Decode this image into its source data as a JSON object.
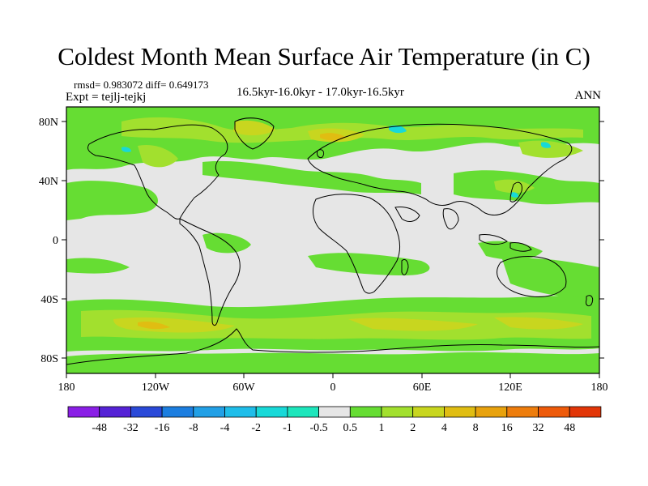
{
  "title": "Coldest Month Mean Surface Air Temperature (in C)",
  "stats": "rmsd= 0.983072  diff= 0.649173",
  "experiment": "Expt = tejlj-tejkj",
  "period": "16.5kyr-16.0kyr - 17.0kyr-16.5kyr",
  "season": "ANN",
  "lat_ticks": [
    "80N",
    "40N",
    "0",
    "40S",
    "80S"
  ],
  "lon_ticks": [
    "180",
    "120W",
    "60W",
    "0",
    "60E",
    "120E",
    "180"
  ],
  "legend": {
    "labels": [
      "-48",
      "-32",
      "-16",
      "-8",
      "-4",
      "-2",
      "-1",
      "-0.5",
      "0.5",
      "1",
      "2",
      "4",
      "8",
      "16",
      "32",
      "48"
    ],
    "colors": [
      "#8a1fe6",
      "#5522d6",
      "#2a49d8",
      "#1c7ee0",
      "#22a0e6",
      "#1fbde9",
      "#18d9d8",
      "#1de6bc",
      "#e6e6e6",
      "#66dd33",
      "#a2e02e",
      "#c8d61f",
      "#e0bd12",
      "#e8a20d",
      "#ee7d0c",
      "#ee5a0a",
      "#e23608"
    ]
  },
  "colors": {
    "neutral": "#e6e6e6",
    "light_green": "#66dd33",
    "yellow_green": "#a2e02e",
    "olive": "#c8d61f",
    "warm": "#e0bd12",
    "cyan": "#18d9d8",
    "coast": "#000000"
  }
}
